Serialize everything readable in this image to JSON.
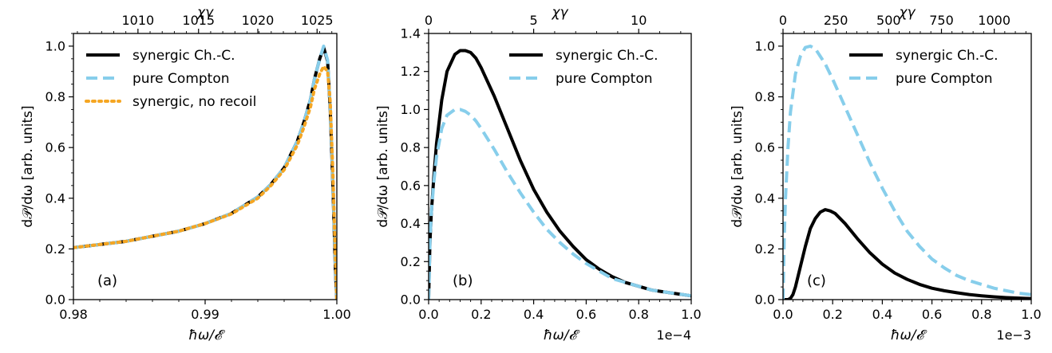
{
  "chart_data": [
    {
      "type": "line",
      "panel_label": "(a)",
      "xlabel": "ħω/𝓔",
      "ylabel": "d𝒫/dω [arb. units]",
      "top_xlabel": "χγ",
      "x_offset_text": "",
      "xlim": [
        0.98,
        1.0
      ],
      "ylim": [
        0.0,
        1.05
      ],
      "xticks": [
        0.98,
        0.99,
        1.0
      ],
      "xtick_labels": [
        "0.98",
        "0.99",
        "1.00"
      ],
      "yticks": [
        0.0,
        0.2,
        0.4,
        0.6,
        0.8,
        1.0
      ],
      "ytick_labels": [
        "0.0",
        "0.2",
        "0.4",
        "0.6",
        "0.8",
        "1.0"
      ],
      "top_ticks": [
        0.9849,
        0.9895,
        0.994,
        0.9985
      ],
      "top_tick_labels": [
        "1010",
        "1015",
        "1020",
        "1025"
      ],
      "legend_position": "upper-left",
      "series": [
        {
          "name": "synergic Ch.-C.",
          "color": "#000000",
          "style": "solid",
          "x": [
            0.98,
            0.984,
            0.988,
            0.99,
            0.992,
            0.994,
            0.995,
            0.996,
            0.997,
            0.9975,
            0.998,
            0.9983,
            0.9987,
            0.999,
            0.9993,
            0.9995,
            0.9997,
            0.9999,
            1.0
          ],
          "y": [
            0.205,
            0.23,
            0.27,
            0.3,
            0.34,
            0.405,
            0.455,
            0.52,
            0.625,
            0.7,
            0.79,
            0.87,
            0.95,
            0.995,
            0.94,
            0.75,
            0.45,
            0.1,
            0.0
          ]
        },
        {
          "name": "pure Compton",
          "color": "#87ceeb",
          "style": "dashed",
          "x": [
            0.98,
            0.984,
            0.988,
            0.99,
            0.992,
            0.994,
            0.995,
            0.996,
            0.997,
            0.9975,
            0.998,
            0.9983,
            0.9987,
            0.999,
            0.9993,
            0.9995,
            0.9997,
            0.9999,
            1.0
          ],
          "y": [
            0.205,
            0.23,
            0.27,
            0.3,
            0.34,
            0.405,
            0.455,
            0.52,
            0.625,
            0.7,
            0.79,
            0.87,
            0.95,
            1.0,
            0.945,
            0.76,
            0.46,
            0.11,
            0.0
          ]
        },
        {
          "name": "synergic, no recoil",
          "color": "#f5a623",
          "style": "dotted",
          "x": [
            0.98,
            0.984,
            0.988,
            0.99,
            0.992,
            0.994,
            0.995,
            0.996,
            0.997,
            0.9975,
            0.998,
            0.9983,
            0.9987,
            0.999,
            0.9993,
            0.9995,
            0.9997,
            0.9999,
            1.0
          ],
          "y": [
            0.205,
            0.23,
            0.27,
            0.3,
            0.338,
            0.4,
            0.45,
            0.512,
            0.61,
            0.68,
            0.76,
            0.83,
            0.89,
            0.92,
            0.9,
            0.78,
            0.5,
            0.15,
            0.0
          ]
        }
      ]
    },
    {
      "type": "line",
      "panel_label": "(b)",
      "xlabel": "ħω/𝓔",
      "ylabel": "d𝒫/dω [arb. units]",
      "top_xlabel": "χγ",
      "x_offset_text": "1e−4",
      "xlim": [
        0.0,
        1.0
      ],
      "ylim": [
        0.0,
        1.4
      ],
      "xticks": [
        0.0,
        0.2,
        0.4,
        0.6,
        0.8,
        1.0
      ],
      "xtick_labels": [
        "0.0",
        "0.2",
        "0.4",
        "0.6",
        "0.8",
        "1.0"
      ],
      "yticks": [
        0.0,
        0.2,
        0.4,
        0.6,
        0.8,
        1.0,
        1.2,
        1.4
      ],
      "ytick_labels": [
        "0.0",
        "0.2",
        "0.4",
        "0.6",
        "0.8",
        "1.0",
        "1.2",
        "1.4"
      ],
      "top_ticks": [
        0.0,
        0.4,
        0.8
      ],
      "top_tick_labels": [
        "0",
        "5",
        "10"
      ],
      "legend_position": "upper-right",
      "series": [
        {
          "name": "synergic Ch.-C.",
          "color": "#000000",
          "style": "solid",
          "x": [
            0.0,
            0.005,
            0.01,
            0.02,
            0.03,
            0.05,
            0.07,
            0.1,
            0.12,
            0.14,
            0.16,
            0.18,
            0.2,
            0.25,
            0.3,
            0.35,
            0.4,
            0.45,
            0.5,
            0.55,
            0.6,
            0.65,
            0.7,
            0.75,
            0.8,
            0.85,
            0.9,
            0.95,
            1.0
          ],
          "y": [
            0.0,
            0.3,
            0.45,
            0.65,
            0.82,
            1.05,
            1.2,
            1.29,
            1.31,
            1.31,
            1.3,
            1.27,
            1.22,
            1.07,
            0.9,
            0.73,
            0.58,
            0.46,
            0.36,
            0.28,
            0.21,
            0.16,
            0.12,
            0.09,
            0.07,
            0.05,
            0.04,
            0.03,
            0.02
          ]
        },
        {
          "name": "pure Compton",
          "color": "#87ceeb",
          "style": "dashed",
          "x": [
            0.0,
            0.005,
            0.01,
            0.02,
            0.03,
            0.05,
            0.07,
            0.1,
            0.12,
            0.14,
            0.16,
            0.18,
            0.2,
            0.25,
            0.3,
            0.35,
            0.4,
            0.45,
            0.5,
            0.55,
            0.6,
            0.65,
            0.7,
            0.75,
            0.8,
            0.85,
            0.9,
            0.95,
            1.0
          ],
          "y": [
            0.0,
            0.3,
            0.45,
            0.62,
            0.75,
            0.9,
            0.97,
            1.0,
            1.0,
            0.99,
            0.97,
            0.94,
            0.9,
            0.79,
            0.67,
            0.56,
            0.46,
            0.37,
            0.3,
            0.24,
            0.19,
            0.15,
            0.11,
            0.09,
            0.07,
            0.05,
            0.04,
            0.03,
            0.02
          ]
        }
      ]
    },
    {
      "type": "line",
      "panel_label": "(c)",
      "xlabel": "ħω/𝓔",
      "ylabel": "d𝒫/dω [arb. units]",
      "top_xlabel": "χγ",
      "x_offset_text": "1e−3",
      "xlim": [
        0.0,
        1.0
      ],
      "ylim": [
        0.0,
        1.05
      ],
      "xticks": [
        0.0,
        0.2,
        0.4,
        0.6,
        0.8,
        1.0
      ],
      "xtick_labels": [
        "0.0",
        "0.2",
        "0.4",
        "0.6",
        "0.8",
        "1.0"
      ],
      "yticks": [
        0.0,
        0.2,
        0.4,
        0.6,
        0.8,
        1.0
      ],
      "ytick_labels": [
        "0.0",
        "0.2",
        "0.4",
        "0.6",
        "0.8",
        "1.0"
      ],
      "top_ticks": [
        0.0,
        0.2127,
        0.4255,
        0.6383,
        0.851
      ],
      "top_tick_labels": [
        "0",
        "250",
        "500",
        "750",
        "1000"
      ],
      "legend_position": "upper-right",
      "series": [
        {
          "name": "synergic Ch.-C.",
          "color": "#000000",
          "style": "solid",
          "x": [
            0.0,
            0.02,
            0.03,
            0.04,
            0.05,
            0.07,
            0.09,
            0.11,
            0.13,
            0.15,
            0.17,
            0.19,
            0.21,
            0.25,
            0.3,
            0.35,
            0.4,
            0.45,
            0.5,
            0.55,
            0.6,
            0.65,
            0.7,
            0.75,
            0.8,
            0.85,
            0.9,
            0.95,
            1.0
          ],
          "y": [
            0.0,
            0.0,
            0.005,
            0.02,
            0.05,
            0.13,
            0.21,
            0.28,
            0.32,
            0.345,
            0.355,
            0.35,
            0.34,
            0.3,
            0.24,
            0.185,
            0.14,
            0.105,
            0.08,
            0.06,
            0.045,
            0.035,
            0.027,
            0.02,
            0.015,
            0.011,
            0.008,
            0.006,
            0.004
          ]
        },
        {
          "name": "pure Compton",
          "color": "#87ceeb",
          "style": "dashed",
          "x": [
            0.0,
            0.005,
            0.01,
            0.02,
            0.03,
            0.05,
            0.07,
            0.09,
            0.11,
            0.13,
            0.15,
            0.17,
            0.2,
            0.25,
            0.3,
            0.35,
            0.4,
            0.45,
            0.5,
            0.55,
            0.6,
            0.65,
            0.7,
            0.75,
            0.8,
            0.85,
            0.9,
            0.95,
            1.0
          ],
          "y": [
            0.0,
            0.25,
            0.4,
            0.6,
            0.74,
            0.89,
            0.96,
            0.995,
            1.0,
            0.99,
            0.96,
            0.93,
            0.87,
            0.76,
            0.65,
            0.54,
            0.44,
            0.35,
            0.27,
            0.21,
            0.16,
            0.125,
            0.095,
            0.075,
            0.06,
            0.045,
            0.035,
            0.025,
            0.02
          ]
        }
      ]
    }
  ]
}
